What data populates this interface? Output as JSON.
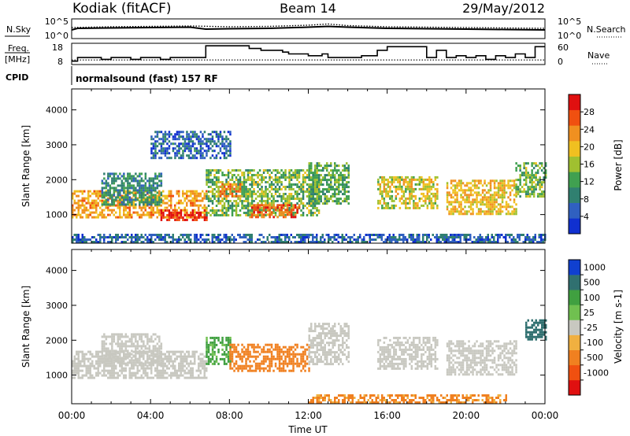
{
  "header": {
    "station": "Kodiak (fitACF)",
    "beam": "Beam 14",
    "date": "29/May/2012",
    "cpid_label": "CPID",
    "cpid_value": "normalsound (fast) 157 RF"
  },
  "chart_data": [
    {
      "type": "line",
      "panel": "noise",
      "left_label": "N.Sky",
      "right_label": "N.Search",
      "left_ticks": [
        "10^5",
        "10^0"
      ],
      "right_ticks": [
        "10^5",
        "10^0"
      ],
      "x_range_hours": [
        0,
        24
      ],
      "series": [
        {
          "name": "N.Sky",
          "style": "solid",
          "x": [
            0,
            0.3,
            2,
            4,
            6,
            6.8,
            8,
            10,
            12,
            13,
            14,
            16,
            18,
            20,
            22,
            24
          ],
          "y": [
            2.2,
            2.6,
            2.7,
            2.8,
            2.9,
            2.4,
            2.5,
            2.6,
            2.9,
            3.1,
            2.9,
            2.6,
            2.5,
            2.4,
            2.3,
            2.2
          ]
        },
        {
          "name": "N.Search",
          "style": "dotted",
          "x": [
            0,
            2,
            4,
            6,
            8,
            10,
            12,
            13,
            14,
            16,
            18,
            20,
            22,
            24
          ],
          "y": [
            2.8,
            3.0,
            3.1,
            3.2,
            3.0,
            3.1,
            3.4,
            3.7,
            3.3,
            3.0,
            2.9,
            2.8,
            2.7,
            2.6
          ]
        }
      ]
    },
    {
      "type": "line",
      "panel": "frequency",
      "left_label_1": "Freq.",
      "left_label_2": "[MHz]",
      "right_label": "Nave",
      "left_ticks": [
        "18",
        "8"
      ],
      "right_ticks": [
        "60",
        "0"
      ],
      "series": [
        {
          "name": "Freq.",
          "style": "solid",
          "x": [
            0,
            0.3,
            1.5,
            2,
            3,
            3.5,
            4.5,
            5,
            6,
            6.8,
            9,
            9.6,
            10.7,
            11,
            12,
            12.7,
            13,
            14.7,
            15.5,
            16,
            18,
            18.5,
            19,
            19.5,
            20,
            20.5,
            21,
            21.5,
            22,
            22.5,
            23,
            23.5,
            24
          ],
          "y": [
            9,
            11,
            10,
            11,
            10,
            11,
            10,
            11,
            11,
            17.5,
            16,
            15,
            14,
            13,
            12,
            13,
            11,
            12,
            15,
            17,
            11,
            15,
            11,
            12,
            11,
            12,
            10,
            12,
            11,
            13,
            11,
            17,
            17
          ]
        },
        {
          "name": "Nave",
          "style": "dotted",
          "x": [
            0,
            24
          ],
          "y": [
            10,
            10
          ]
        }
      ]
    },
    {
      "type": "heatmap",
      "panel": "power",
      "ylabel": "Slant Range [km]",
      "yticks": [
        1000,
        2000,
        3000,
        4000
      ],
      "ylim": [
        180,
        4600
      ],
      "colorbar_label": "Power [dB]",
      "colorbar_ticks": [
        4,
        8,
        12,
        16,
        20,
        24,
        28
      ],
      "colorbar_range": [
        0,
        32
      ],
      "colors": [
        "#1030d0",
        "#3060c0",
        "#308070",
        "#40a050",
        "#a0c030",
        "#f0c020",
        "#f09020",
        "#f05010",
        "#e01010"
      ],
      "regions": [
        {
          "x": [
            0.0,
            6.8
          ],
          "y": [
            900,
            1700
          ],
          "v": 22
        },
        {
          "x": [
            4.5,
            6.8
          ],
          "y": [
            850,
            1150
          ],
          "v": 30
        },
        {
          "x": [
            1.5,
            4.5
          ],
          "y": [
            1300,
            2200
          ],
          "v": 10
        },
        {
          "x": [
            6.8,
            12.5
          ],
          "y": [
            1000,
            2300
          ],
          "v": 14
        },
        {
          "x": [
            7.5,
            8.5
          ],
          "y": [
            1500,
            1900
          ],
          "v": 24
        },
        {
          "x": [
            9.0,
            11.5
          ],
          "y": [
            900,
            1300
          ],
          "v": 26
        },
        {
          "x": [
            12.0,
            14.0
          ],
          "y": [
            1300,
            2500
          ],
          "v": 12
        },
        {
          "x": [
            15.5,
            18.5
          ],
          "y": [
            1200,
            2100
          ],
          "v": 18
        },
        {
          "x": [
            19.0,
            22.5
          ],
          "y": [
            1000,
            2000
          ],
          "v": 20
        },
        {
          "x": [
            22.5,
            24.0
          ],
          "y": [
            1500,
            2500
          ],
          "v": 14
        },
        {
          "x": [
            0.0,
            24.0
          ],
          "y": [
            200,
            450
          ],
          "v": 6
        },
        {
          "x": [
            4.0,
            8.0
          ],
          "y": [
            2600,
            3400
          ],
          "v": 6
        }
      ]
    },
    {
      "type": "heatmap",
      "panel": "velocity",
      "ylabel": "Slant Range [km]",
      "xlabel": "Time UT",
      "xticks": [
        "00:00",
        "04:00",
        "08:00",
        "12:00",
        "16:00",
        "20:00",
        "00:00"
      ],
      "yticks": [
        1000,
        2000,
        3000,
        4000
      ],
      "ylim": [
        180,
        4600
      ],
      "colorbar_label": "Velocity [m s-1]",
      "colorbar_ticks": [
        "1000",
        "500",
        "100",
        "25",
        "-25",
        "-100",
        "-500",
        "-1000"
      ],
      "colors": [
        "#e01010",
        "#f05010",
        "#f08020",
        "#f0b040",
        "#c8c8c0",
        "#70c050",
        "#40a040",
        "#307070",
        "#1040d0"
      ],
      "regions": [
        {
          "x": [
            0.0,
            6.8
          ],
          "y": [
            900,
            1700
          ],
          "v": 0
        },
        {
          "x": [
            1.5,
            4.5
          ],
          "y": [
            1300,
            2200
          ],
          "v": 0
        },
        {
          "x": [
            6.8,
            8.0
          ],
          "y": [
            1300,
            2100
          ],
          "v": 150
        },
        {
          "x": [
            8.0,
            12.0
          ],
          "y": [
            1100,
            1900
          ],
          "v": -200
        },
        {
          "x": [
            12.0,
            14.0
          ],
          "y": [
            1300,
            2500
          ],
          "v": 0
        },
        {
          "x": [
            15.5,
            18.5
          ],
          "y": [
            1200,
            2100
          ],
          "v": 0
        },
        {
          "x": [
            19.0,
            22.5
          ],
          "y": [
            1000,
            2000
          ],
          "v": 0
        },
        {
          "x": [
            23.0,
            24.0
          ],
          "y": [
            2000,
            2600
          ],
          "v": 900
        },
        {
          "x": [
            12.0,
            22.0
          ],
          "y": [
            200,
            450
          ],
          "v": -150
        }
      ]
    }
  ]
}
